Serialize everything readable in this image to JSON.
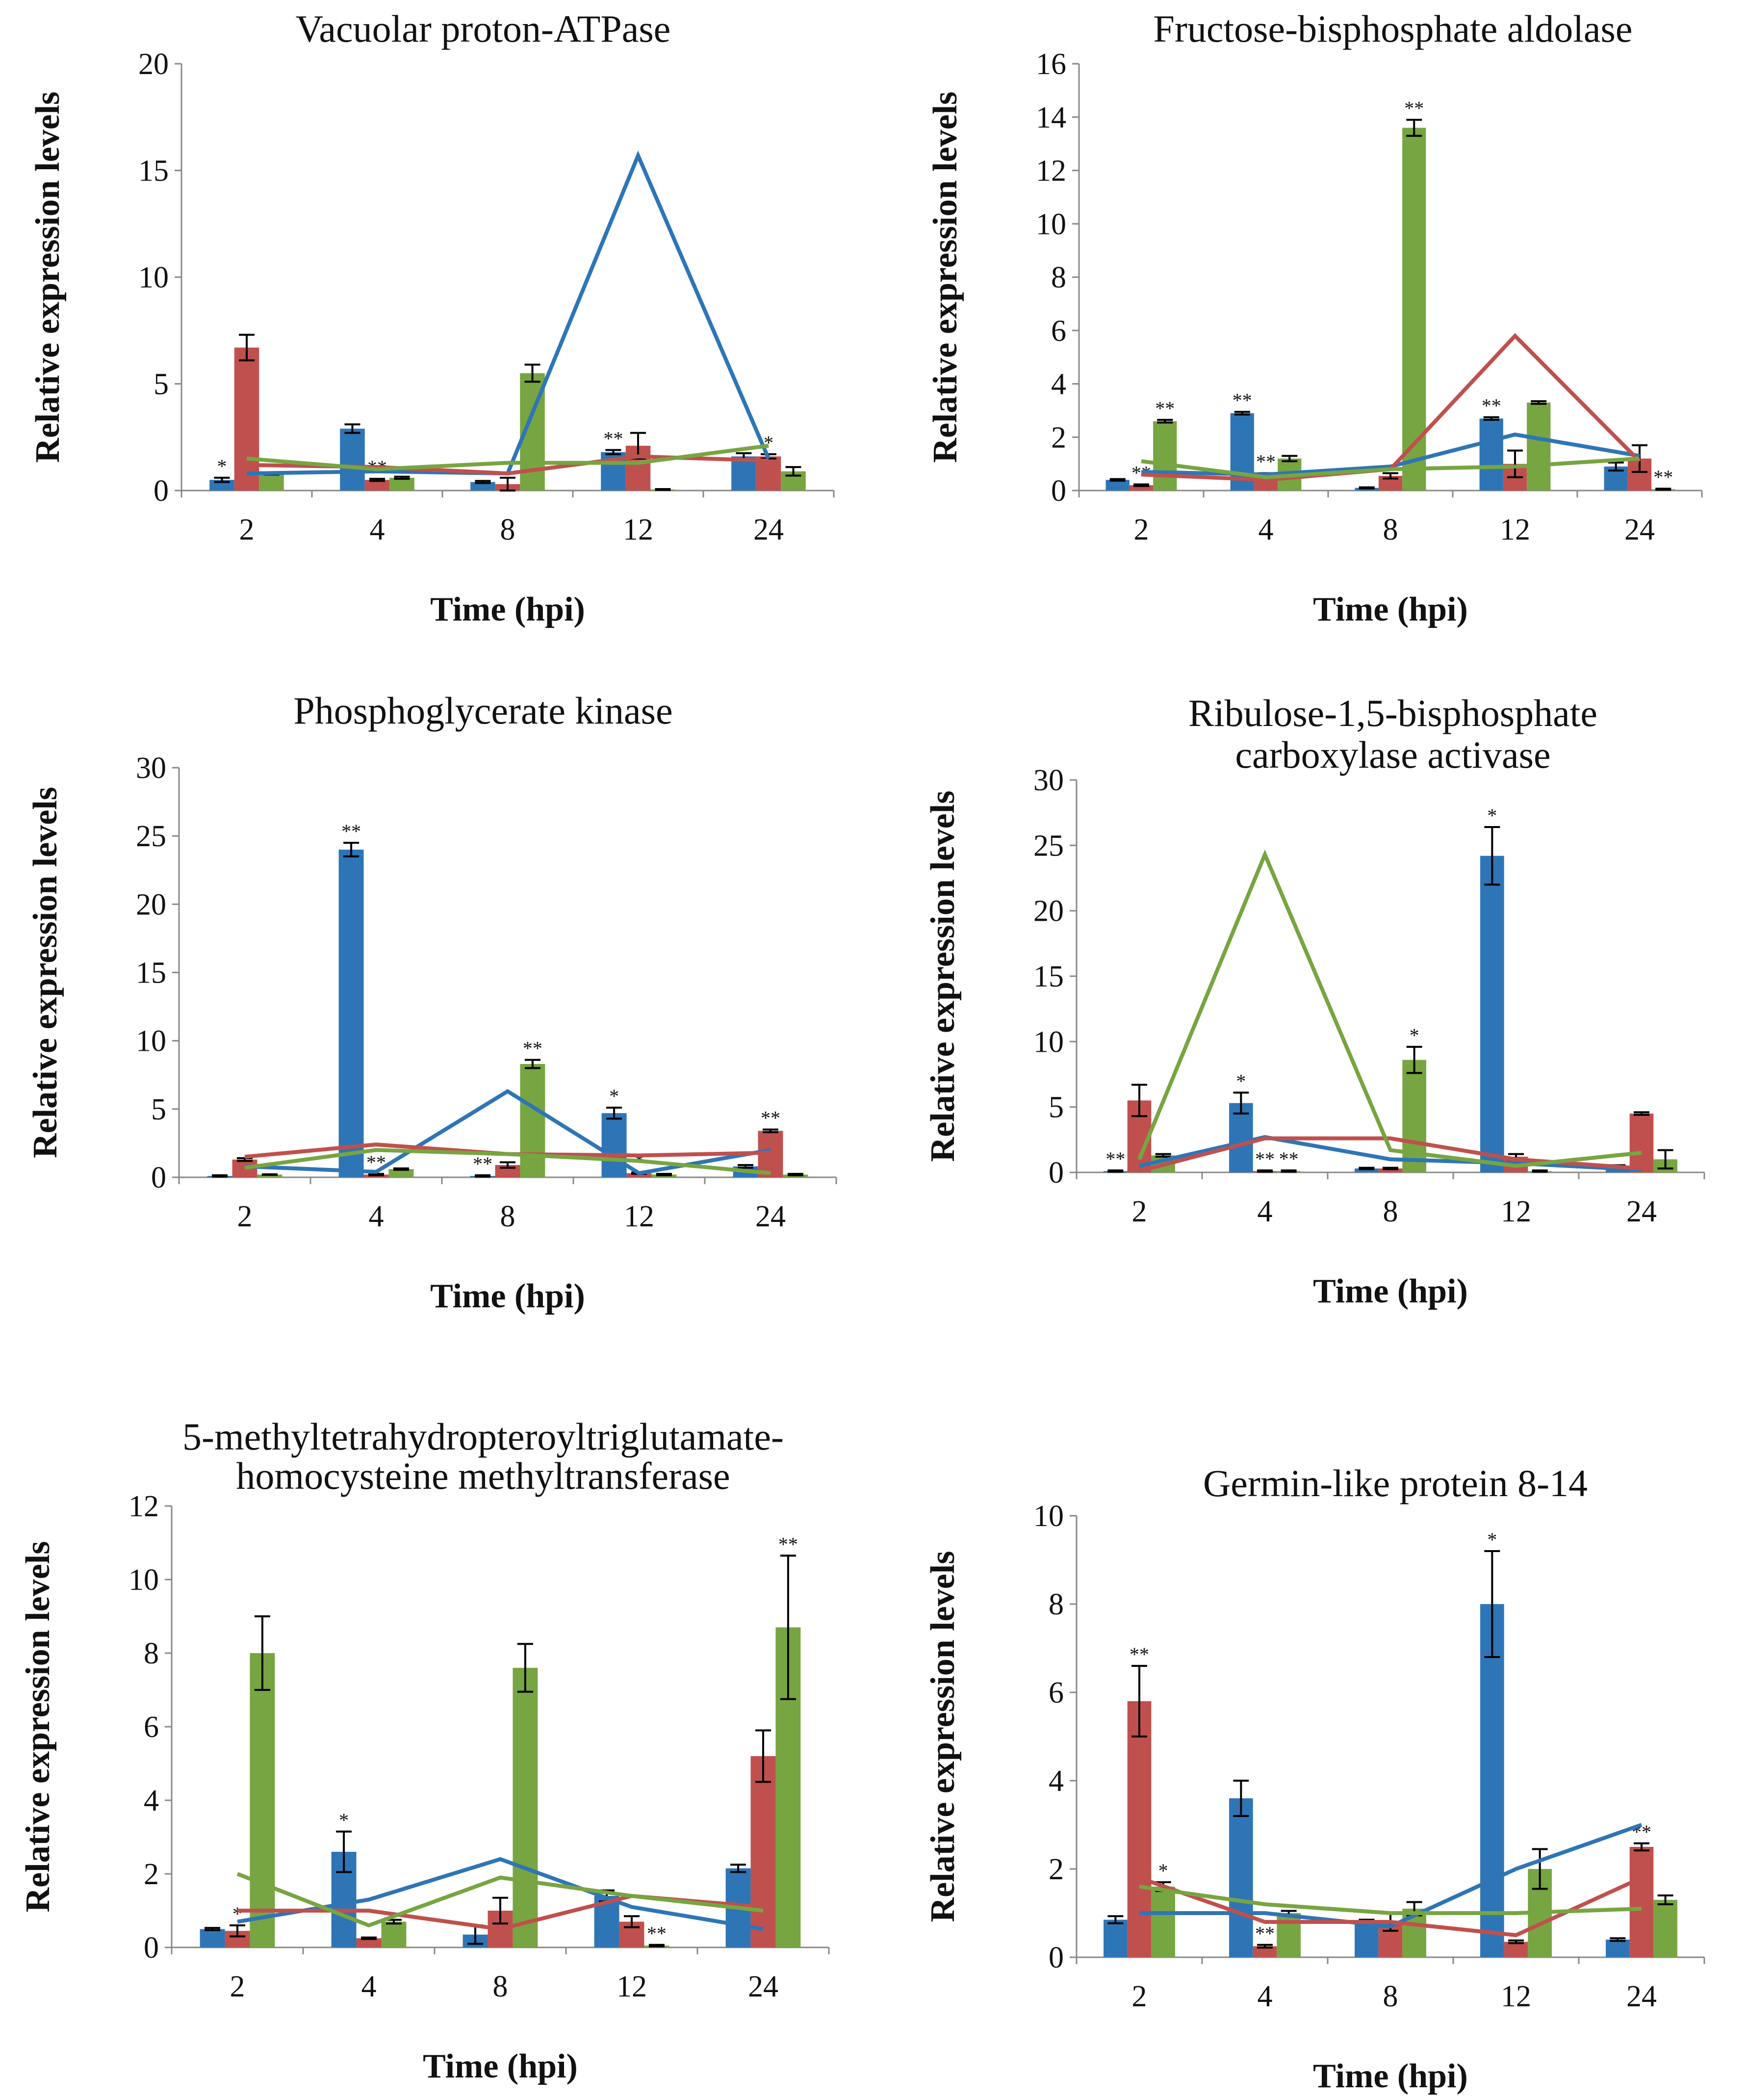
{
  "colors": {
    "blue": "#2e75b6",
    "red": "#c0504d",
    "green": "#77a541",
    "axis": "#888888",
    "error": "#000000"
  },
  "series_names": [
    "blue",
    "red",
    "green"
  ],
  "chart_data": [
    {
      "type": "bar",
      "title": "Vacuolar proton-ATPase",
      "xlabel": "Time (hpi)",
      "ylabel": "Relative expression levels",
      "categories": [
        "2",
        "4",
        "8",
        "12",
        "24"
      ],
      "ylim": [
        0,
        20
      ],
      "yticks": [
        "0",
        "5",
        "10",
        "15",
        "20"
      ],
      "series": [
        {
          "name": "blue",
          "values": [
            0.5,
            2.9,
            0.4,
            1.8,
            1.6
          ],
          "errors": [
            0.1,
            0.2,
            0.05,
            0.1,
            0.15
          ],
          "labels": [
            "*",
            "",
            "",
            "**",
            ""
          ]
        },
        {
          "name": "red",
          "values": [
            6.7,
            0.5,
            0.3,
            2.1,
            1.6
          ],
          "errors": [
            0.6,
            0.05,
            0.3,
            0.6,
            0.1
          ],
          "labels": [
            "",
            "**",
            "",
            "",
            "*"
          ]
        },
        {
          "name": "green",
          "values": [
            0.8,
            0.6,
            5.5,
            0.05,
            0.9
          ],
          "errors": [
            0.05,
            0.05,
            0.4,
            0.02,
            0.2
          ],
          "labels": [
            "",
            "",
            "",
            "",
            ""
          ]
        }
      ],
      "lines": [
        {
          "name": "blue",
          "values": [
            0.8,
            0.9,
            0.8,
            15.7,
            1.5
          ]
        },
        {
          "name": "red",
          "values": [
            1.2,
            1.1,
            0.8,
            1.6,
            1.4
          ]
        },
        {
          "name": "green",
          "values": [
            1.5,
            1.0,
            1.3,
            1.3,
            2.1
          ]
        }
      ]
    },
    {
      "type": "bar",
      "title": "Fructose-bisphosphate aldolase",
      "xlabel": "Time (hpi)",
      "ylabel": "Relative expression levels",
      "categories": [
        "2",
        "4",
        "8",
        "12",
        "24"
      ],
      "ylim": [
        0,
        16
      ],
      "yticks": [
        "0",
        "2",
        "4",
        "6",
        "8",
        "10",
        "12",
        "14",
        "16"
      ],
      "series": [
        {
          "name": "blue",
          "values": [
            0.4,
            2.9,
            0.1,
            2.7,
            0.9
          ],
          "errors": [
            0.03,
            0.05,
            0.02,
            0.05,
            0.15
          ],
          "labels": [
            "",
            "**",
            "",
            "**",
            ""
          ]
        },
        {
          "name": "red",
          "values": [
            0.2,
            0.6,
            0.55,
            1.0,
            1.2
          ],
          "errors": [
            0.03,
            0.05,
            0.1,
            0.5,
            0.5
          ],
          "labels": [
            "**",
            "**",
            "",
            "",
            ""
          ]
        },
        {
          "name": "green",
          "values": [
            2.6,
            1.2,
            13.6,
            3.3,
            0.05
          ],
          "errors": [
            0.05,
            0.1,
            0.3,
            0.05,
            0.02
          ],
          "labels": [
            "**",
            "",
            "**",
            "",
            "**"
          ]
        }
      ],
      "lines": [
        {
          "name": "blue",
          "values": [
            0.7,
            0.6,
            0.9,
            2.1,
            1.3
          ]
        },
        {
          "name": "red",
          "values": [
            0.6,
            0.4,
            0.8,
            5.8,
            1.1
          ]
        },
        {
          "name": "green",
          "values": [
            1.1,
            0.5,
            0.8,
            0.9,
            1.2
          ]
        }
      ]
    },
    {
      "type": "bar",
      "title": "Phosphoglycerate kinase",
      "xlabel": "Time (hpi)",
      "ylabel": "Relative expression levels",
      "categories": [
        "2",
        "4",
        "8",
        "12",
        "24"
      ],
      "ylim": [
        0,
        30
      ],
      "yticks": [
        "0",
        "5",
        "10",
        "15",
        "20",
        "25",
        "30"
      ],
      "series": [
        {
          "name": "blue",
          "values": [
            0.1,
            24.0,
            0.1,
            4.7,
            0.8
          ],
          "errors": [
            0.05,
            0.5,
            0.05,
            0.4,
            0.1
          ],
          "labels": [
            "",
            "**",
            "**",
            "*",
            ""
          ]
        },
        {
          "name": "red",
          "values": [
            1.3,
            0.2,
            0.9,
            0.3,
            3.4
          ],
          "errors": [
            0.1,
            0.05,
            0.2,
            0.05,
            0.1
          ],
          "labels": [
            "",
            "**",
            "",
            "*",
            "**"
          ]
        },
        {
          "name": "green",
          "values": [
            0.2,
            0.6,
            8.3,
            0.2,
            0.2
          ],
          "errors": [
            0.02,
            0.05,
            0.3,
            0.05,
            0.05
          ],
          "labels": [
            "",
            "",
            "**",
            "",
            ""
          ]
        }
      ],
      "lines": [
        {
          "name": "blue",
          "values": [
            0.8,
            0.4,
            6.3,
            0.3,
            2.0
          ]
        },
        {
          "name": "red",
          "values": [
            1.5,
            2.4,
            1.7,
            1.6,
            1.8
          ]
        },
        {
          "name": "green",
          "values": [
            0.7,
            2.0,
            1.7,
            1.2,
            0.3
          ]
        }
      ]
    },
    {
      "type": "bar",
      "title": "Ribulose-1,5-bisphosphate carboxylase activase",
      "title_lines": [
        "Ribulose-1,5-bisphosphate",
        "carboxylase activase"
      ],
      "xlabel": "Time (hpi)",
      "ylabel": "Relative expression levels",
      "categories": [
        "2",
        "4",
        "8",
        "12",
        "24"
      ],
      "ylim": [
        0,
        30
      ],
      "yticks": [
        "0",
        "5",
        "10",
        "15",
        "20",
        "25",
        "30"
      ],
      "series": [
        {
          "name": "blue",
          "values": [
            0.1,
            5.3,
            0.3,
            24.2,
            0.5
          ],
          "errors": [
            0.05,
            0.8,
            0.05,
            2.2,
            0.05
          ],
          "labels": [
            "**",
            "*",
            "",
            "*",
            ""
          ]
        },
        {
          "name": "red",
          "values": [
            5.5,
            0.1,
            0.3,
            1.2,
            4.5
          ],
          "errors": [
            1.2,
            0.05,
            0.05,
            0.2,
            0.1
          ],
          "labels": [
            "",
            "**",
            "",
            "",
            ""
          ]
        },
        {
          "name": "green",
          "values": [
            1.3,
            0.1,
            8.6,
            0.1,
            1.0
          ],
          "errors": [
            0.1,
            0.05,
            1.0,
            0.05,
            0.7
          ],
          "labels": [
            "",
            "**",
            "*",
            "",
            ""
          ]
        }
      ],
      "lines": [
        {
          "name": "blue",
          "values": [
            0.5,
            2.7,
            1.0,
            0.7,
            0.2
          ]
        },
        {
          "name": "red",
          "values": [
            0.1,
            2.6,
            2.6,
            1.0,
            0.3
          ]
        },
        {
          "name": "green",
          "values": [
            1.0,
            24.3,
            1.7,
            0.5,
            1.5
          ]
        }
      ]
    },
    {
      "type": "bar",
      "title": "5-methyltetrahydropteroyltriglutamate-homocysteine methyltransferase",
      "title_lines": [
        "5-methyltetrahydropteroyltriglutamate-",
        "homocysteine methyltransferase"
      ],
      "xlabel": "Time (hpi)",
      "ylabel": "Relative expression levels",
      "categories": [
        "2",
        "4",
        "8",
        "12",
        "24"
      ],
      "ylim": [
        0,
        12
      ],
      "yticks": [
        "0",
        "2",
        "4",
        "6",
        "8",
        "10",
        "12"
      ],
      "series": [
        {
          "name": "blue",
          "values": [
            0.5,
            2.6,
            0.35,
            1.4,
            2.15
          ],
          "errors": [
            0.03,
            0.55,
            0.25,
            0.15,
            0.1
          ],
          "labels": [
            "",
            "*",
            "",
            "",
            ""
          ]
        },
        {
          "name": "red",
          "values": [
            0.45,
            0.25,
            1.0,
            0.7,
            5.2
          ],
          "errors": [
            0.15,
            0.02,
            0.35,
            0.15,
            0.7
          ],
          "labels": [
            "*",
            "",
            "",
            "",
            ""
          ]
        },
        {
          "name": "green",
          "values": [
            8.0,
            0.7,
            7.6,
            0.05,
            8.7
          ],
          "errors": [
            1.0,
            0.05,
            0.65,
            0.02,
            1.95
          ],
          "labels": [
            "",
            "",
            "",
            "**",
            "**"
          ]
        }
      ],
      "lines": [
        {
          "name": "blue",
          "values": [
            0.7,
            1.3,
            2.4,
            1.1,
            0.5
          ]
        },
        {
          "name": "red",
          "values": [
            1.0,
            1.0,
            0.5,
            1.4,
            1.1
          ]
        },
        {
          "name": "green",
          "values": [
            2.0,
            0.6,
            1.9,
            1.4,
            1.0
          ]
        }
      ]
    },
    {
      "type": "bar",
      "title": "Germin-like protein 8-14",
      "xlabel": "Time (hpi)",
      "ylabel": "Relative expression levels",
      "categories": [
        "2",
        "4",
        "8",
        "12",
        "24"
      ],
      "ylim": [
        0,
        10
      ],
      "yticks": [
        "0",
        "2",
        "4",
        "6",
        "8",
        "10"
      ],
      "series": [
        {
          "name": "blue",
          "values": [
            0.85,
            3.6,
            0.8,
            8.0,
            0.4
          ],
          "errors": [
            0.08,
            0.4,
            0.05,
            1.2,
            0.03
          ],
          "labels": [
            "",
            "",
            "",
            "*",
            ""
          ]
        },
        {
          "name": "red",
          "values": [
            5.8,
            0.25,
            0.8,
            0.35,
            2.5
          ],
          "errors": [
            0.8,
            0.03,
            0.2,
            0.03,
            0.08
          ],
          "labels": [
            "**",
            "**",
            "",
            "",
            "**"
          ]
        },
        {
          "name": "green",
          "values": [
            1.6,
            1.0,
            1.1,
            2.0,
            1.3
          ],
          "errors": [
            0.1,
            0.05,
            0.15,
            0.45,
            0.1
          ],
          "labels": [
            "*",
            "",
            "",
            "",
            ""
          ]
        }
      ],
      "lines": [
        {
          "name": "blue",
          "values": [
            1.0,
            1.0,
            0.7,
            2.0,
            3.0
          ]
        },
        {
          "name": "red",
          "values": [
            1.8,
            0.8,
            0.8,
            0.5,
            1.8
          ]
        },
        {
          "name": "green",
          "values": [
            1.6,
            1.2,
            1.0,
            1.0,
            1.1
          ]
        }
      ]
    }
  ]
}
